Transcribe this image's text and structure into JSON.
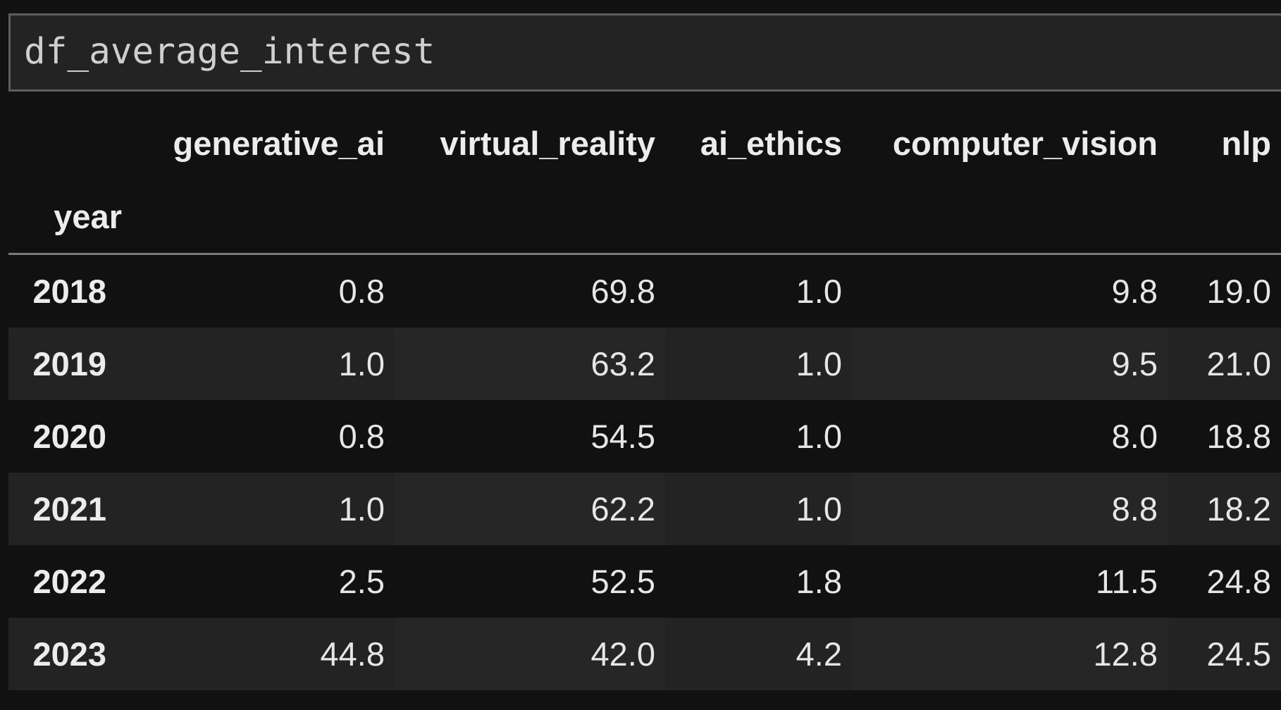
{
  "code_cell": {
    "source": "df_average_interest"
  },
  "dataframe": {
    "columns": [
      "generative_ai",
      "virtual_reality",
      "ai_ethics",
      "computer_vision",
      "nlp"
    ],
    "index_name": "year",
    "rows": [
      {
        "index": "2018",
        "values": [
          "0.8",
          "69.8",
          "1.0",
          "9.8",
          "19.0"
        ]
      },
      {
        "index": "2019",
        "values": [
          "1.0",
          "63.2",
          "1.0",
          "9.5",
          "21.0"
        ]
      },
      {
        "index": "2020",
        "values": [
          "0.8",
          "54.5",
          "1.0",
          "8.0",
          "18.8"
        ]
      },
      {
        "index": "2021",
        "values": [
          "1.0",
          "62.2",
          "1.0",
          "8.8",
          "18.2"
        ]
      },
      {
        "index": "2022",
        "values": [
          "2.5",
          "52.5",
          "1.8",
          "11.5",
          "24.8"
        ]
      },
      {
        "index": "2023",
        "values": [
          "44.8",
          "42.0",
          "4.2",
          "12.8",
          "24.5"
        ]
      }
    ]
  },
  "colors": {
    "background": "#111111",
    "row_stripe": "#232323",
    "text": "#e6e6e6",
    "cell_border": "#5e5e5e"
  }
}
